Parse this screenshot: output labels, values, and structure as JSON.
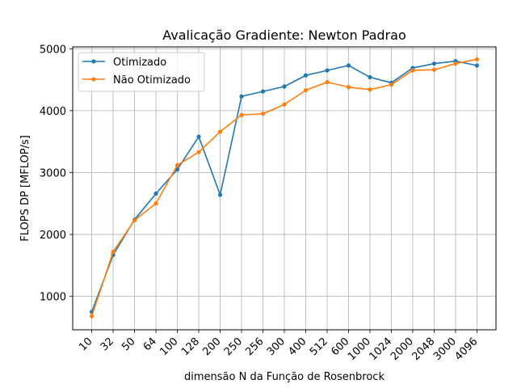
{
  "chart_data": {
    "type": "line",
    "title": "Avalicação Gradiente:  Newton Padrao",
    "xlabel": "dimensão N da Função de Rosenbrock",
    "ylabel": "FLOPS DP [MFLOP/s]",
    "categories": [
      "10",
      "32",
      "50",
      "64",
      "100",
      "128",
      "200",
      "250",
      "256",
      "300",
      "400",
      "512",
      "600",
      "1000",
      "1024",
      "2000",
      "2048",
      "3000",
      "4096"
    ],
    "ylim": [
      460,
      5030
    ],
    "yticks": [
      1000,
      2000,
      3000,
      4000,
      5000
    ],
    "grid": true,
    "legend_position": "top-left",
    "series": [
      {
        "name": "Otimizado",
        "color": "#1f77b4",
        "values": [
          750,
          1670,
          2240,
          2660,
          3050,
          3580,
          2640,
          4230,
          4310,
          4390,
          4570,
          4650,
          4730,
          4540,
          4450,
          4690,
          4760,
          4800,
          4730
        ]
      },
      {
        "name": " Não Otimizado",
        "color": "#ff7f0e",
        "values": [
          680,
          1720,
          2230,
          2500,
          3120,
          3330,
          3660,
          3930,
          3950,
          4100,
          4330,
          4460,
          4380,
          4340,
          4420,
          4650,
          4660,
          4760,
          4830
        ]
      }
    ]
  }
}
